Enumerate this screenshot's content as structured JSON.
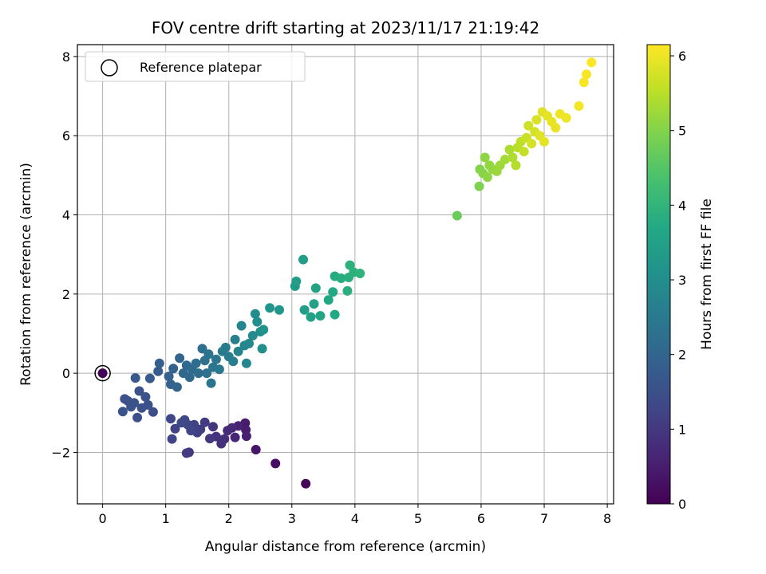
{
  "chart_data": {
    "type": "scatter",
    "title": "FOV centre drift starting at 2023/11/17 21:19:42",
    "xlabel": "Angular distance from reference (arcmin)",
    "ylabel": "Rotation from reference (arcmin)",
    "xlim": [
      -0.4,
      8.1
    ],
    "ylim": [
      -3.3,
      8.3
    ],
    "xticks": [
      0,
      1,
      2,
      3,
      4,
      5,
      6,
      7,
      8
    ],
    "yticks": [
      -2,
      0,
      2,
      4,
      6,
      8
    ],
    "grid": true,
    "legend": {
      "placement": "top-left",
      "entries": [
        "Reference platepar"
      ]
    },
    "reference_point": {
      "x": 0,
      "y": 0
    },
    "colorbar": {
      "label": "Hours from first FF file",
      "colormap": "viridis",
      "range": [
        0,
        6.15
      ],
      "ticks": [
        0,
        1,
        2,
        3,
        4,
        5,
        6
      ]
    },
    "series": [
      {
        "points": [
          {
            "x": 0.0,
            "y": 0.0,
            "c": 0.05
          },
          {
            "x": 3.22,
            "y": -2.79,
            "c": 0.1
          },
          {
            "x": 2.74,
            "y": -2.28,
            "c": 0.25
          },
          {
            "x": 2.43,
            "y": -1.93,
            "c": 0.35
          },
          {
            "x": 2.26,
            "y": -1.26,
            "c": 0.45
          },
          {
            "x": 2.27,
            "y": -1.43,
            "c": 0.5
          },
          {
            "x": 2.28,
            "y": -1.59,
            "c": 0.55
          },
          {
            "x": 2.15,
            "y": -1.33,
            "c": 0.6
          },
          {
            "x": 2.1,
            "y": -1.62,
            "c": 0.65
          },
          {
            "x": 2.05,
            "y": -1.38,
            "c": 0.7
          },
          {
            "x": 1.98,
            "y": -1.45,
            "c": 0.75
          },
          {
            "x": 1.93,
            "y": -1.66,
            "c": 0.8
          },
          {
            "x": 1.88,
            "y": -1.78,
            "c": 0.85
          },
          {
            "x": 1.8,
            "y": -1.6,
            "c": 0.9
          },
          {
            "x": 1.75,
            "y": -1.35,
            "c": 0.95
          },
          {
            "x": 1.7,
            "y": -1.65,
            "c": 1.0
          },
          {
            "x": 1.62,
            "y": -1.24,
            "c": 1.05
          },
          {
            "x": 1.55,
            "y": -1.42,
            "c": 1.1
          },
          {
            "x": 1.5,
            "y": -1.5,
            "c": 1.15
          },
          {
            "x": 1.45,
            "y": -1.3,
            "c": 1.2
          },
          {
            "x": 1.4,
            "y": -1.45,
            "c": 1.25
          },
          {
            "x": 1.35,
            "y": -1.3,
            "c": 1.3
          },
          {
            "x": 1.3,
            "y": -1.18,
            "c": 1.35
          },
          {
            "x": 1.25,
            "y": -1.25,
            "c": 1.4
          },
          {
            "x": 1.37,
            "y": -2.0,
            "c": 1.0
          },
          {
            "x": 1.33,
            "y": -2.02,
            "c": 1.05
          },
          {
            "x": 1.15,
            "y": -1.4,
            "c": 1.2
          },
          {
            "x": 1.1,
            "y": -1.66,
            "c": 1.25
          },
          {
            "x": 1.08,
            "y": -1.15,
            "c": 1.3
          },
          {
            "x": 0.8,
            "y": -0.98,
            "c": 1.45
          },
          {
            "x": 0.72,
            "y": -0.8,
            "c": 1.5
          },
          {
            "x": 0.68,
            "y": -0.6,
            "c": 1.55
          },
          {
            "x": 0.62,
            "y": -0.88,
            "c": 1.55
          },
          {
            "x": 0.58,
            "y": -0.45,
            "c": 1.6
          },
          {
            "x": 0.55,
            "y": -1.12,
            "c": 1.5
          },
          {
            "x": 0.5,
            "y": -0.75,
            "c": 1.6
          },
          {
            "x": 0.45,
            "y": -0.85,
            "c": 1.6
          },
          {
            "x": 0.4,
            "y": -0.7,
            "c": 1.55
          },
          {
            "x": 0.35,
            "y": -0.65,
            "c": 1.55
          },
          {
            "x": 0.32,
            "y": -0.97,
            "c": 1.6
          },
          {
            "x": 0.52,
            "y": -0.12,
            "c": 1.7
          },
          {
            "x": 0.75,
            "y": -0.13,
            "c": 1.75
          },
          {
            "x": 0.88,
            "y": 0.05,
            "c": 1.8
          },
          {
            "x": 0.9,
            "y": 0.25,
            "c": 1.85
          },
          {
            "x": 1.05,
            "y": -0.08,
            "c": 1.9
          },
          {
            "x": 1.08,
            "y": -0.28,
            "c": 1.9
          },
          {
            "x": 1.12,
            "y": 0.12,
            "c": 1.95
          },
          {
            "x": 1.18,
            "y": -0.35,
            "c": 2.0
          },
          {
            "x": 1.22,
            "y": 0.38,
            "c": 2.0
          },
          {
            "x": 1.28,
            "y": 0.0,
            "c": 2.05
          },
          {
            "x": 1.33,
            "y": 0.2,
            "c": 2.1
          },
          {
            "x": 1.38,
            "y": -0.1,
            "c": 2.1
          },
          {
            "x": 1.42,
            "y": 0.1,
            "c": 2.15
          },
          {
            "x": 1.48,
            "y": 0.25,
            "c": 2.2
          },
          {
            "x": 1.52,
            "y": 0.0,
            "c": 2.2
          },
          {
            "x": 1.58,
            "y": 0.62,
            "c": 2.25
          },
          {
            "x": 1.62,
            "y": 0.32,
            "c": 2.3
          },
          {
            "x": 1.65,
            "y": 0.0,
            "c": 2.3
          },
          {
            "x": 1.68,
            "y": 0.48,
            "c": 2.35
          },
          {
            "x": 1.72,
            "y": -0.25,
            "c": 2.35
          },
          {
            "x": 1.75,
            "y": 0.15,
            "c": 2.4
          },
          {
            "x": 1.8,
            "y": 0.35,
            "c": 2.4
          },
          {
            "x": 1.85,
            "y": 0.1,
            "c": 2.45
          },
          {
            "x": 1.9,
            "y": 0.55,
            "c": 2.5
          },
          {
            "x": 1.95,
            "y": 0.65,
            "c": 2.55
          },
          {
            "x": 2.0,
            "y": 0.42,
            "c": 2.55
          },
          {
            "x": 2.07,
            "y": 0.3,
            "c": 2.6
          },
          {
            "x": 2.1,
            "y": 0.85,
            "c": 2.65
          },
          {
            "x": 2.15,
            "y": 0.55,
            "c": 2.7
          },
          {
            "x": 2.2,
            "y": 1.2,
            "c": 2.75
          },
          {
            "x": 2.25,
            "y": 0.7,
            "c": 2.8
          },
          {
            "x": 2.28,
            "y": 0.25,
            "c": 2.8
          },
          {
            "x": 2.32,
            "y": 0.75,
            "c": 2.85
          },
          {
            "x": 2.38,
            "y": 0.95,
            "c": 2.9
          },
          {
            "x": 2.42,
            "y": 1.5,
            "c": 2.95
          },
          {
            "x": 2.45,
            "y": 1.3,
            "c": 3.0
          },
          {
            "x": 2.5,
            "y": 1.05,
            "c": 3.0
          },
          {
            "x": 2.53,
            "y": 0.62,
            "c": 3.05
          },
          {
            "x": 2.55,
            "y": 1.1,
            "c": 3.1
          },
          {
            "x": 2.65,
            "y": 1.65,
            "c": 3.15
          },
          {
            "x": 2.8,
            "y": 1.6,
            "c": 3.2
          },
          {
            "x": 3.05,
            "y": 2.2,
            "c": 3.35
          },
          {
            "x": 3.07,
            "y": 2.32,
            "c": 3.4
          },
          {
            "x": 3.18,
            "y": 2.87,
            "c": 3.4
          },
          {
            "x": 3.2,
            "y": 1.6,
            "c": 3.45
          },
          {
            "x": 3.3,
            "y": 1.42,
            "c": 3.5
          },
          {
            "x": 3.35,
            "y": 1.75,
            "c": 3.5
          },
          {
            "x": 3.38,
            "y": 2.15,
            "c": 3.55
          },
          {
            "x": 3.45,
            "y": 1.45,
            "c": 3.6
          },
          {
            "x": 3.58,
            "y": 1.85,
            "c": 3.65
          },
          {
            "x": 3.65,
            "y": 2.05,
            "c": 3.7
          },
          {
            "x": 3.68,
            "y": 1.48,
            "c": 3.7
          },
          {
            "x": 3.68,
            "y": 2.45,
            "c": 3.75
          },
          {
            "x": 3.78,
            "y": 2.4,
            "c": 3.8
          },
          {
            "x": 3.88,
            "y": 2.08,
            "c": 3.85
          },
          {
            "x": 3.9,
            "y": 2.42,
            "c": 3.85
          },
          {
            "x": 3.92,
            "y": 2.73,
            "c": 3.9
          },
          {
            "x": 3.98,
            "y": 2.55,
            "c": 3.9
          },
          {
            "x": 4.08,
            "y": 2.52,
            "c": 3.95
          },
          {
            "x": 5.62,
            "y": 3.98,
            "c": 4.75
          },
          {
            "x": 5.97,
            "y": 4.72,
            "c": 4.95
          },
          {
            "x": 5.98,
            "y": 5.15,
            "c": 5.0
          },
          {
            "x": 6.03,
            "y": 5.05,
            "c": 5.05
          },
          {
            "x": 6.06,
            "y": 5.45,
            "c": 5.1
          },
          {
            "x": 6.1,
            "y": 4.95,
            "c": 5.1
          },
          {
            "x": 6.13,
            "y": 5.25,
            "c": 5.15
          },
          {
            "x": 6.18,
            "y": 5.15,
            "c": 5.15
          },
          {
            "x": 6.25,
            "y": 5.1,
            "c": 5.2
          },
          {
            "x": 6.3,
            "y": 5.25,
            "c": 5.25
          },
          {
            "x": 6.38,
            "y": 5.4,
            "c": 5.3
          },
          {
            "x": 6.45,
            "y": 5.65,
            "c": 5.35
          },
          {
            "x": 6.5,
            "y": 5.45,
            "c": 5.4
          },
          {
            "x": 6.55,
            "y": 5.25,
            "c": 5.45
          },
          {
            "x": 6.58,
            "y": 5.7,
            "c": 5.5
          },
          {
            "x": 6.63,
            "y": 5.85,
            "c": 5.55
          },
          {
            "x": 6.68,
            "y": 5.6,
            "c": 5.6
          },
          {
            "x": 6.72,
            "y": 5.95,
            "c": 5.65
          },
          {
            "x": 6.75,
            "y": 6.25,
            "c": 5.7
          },
          {
            "x": 6.8,
            "y": 5.8,
            "c": 5.75
          },
          {
            "x": 6.85,
            "y": 6.1,
            "c": 5.75
          },
          {
            "x": 6.88,
            "y": 6.4,
            "c": 5.8
          },
          {
            "x": 6.93,
            "y": 6.0,
            "c": 5.85
          },
          {
            "x": 6.97,
            "y": 6.6,
            "c": 5.85
          },
          {
            "x": 7.0,
            "y": 5.85,
            "c": 5.9
          },
          {
            "x": 7.05,
            "y": 6.5,
            "c": 5.9
          },
          {
            "x": 7.12,
            "y": 6.35,
            "c": 5.95
          },
          {
            "x": 7.18,
            "y": 6.2,
            "c": 5.95
          },
          {
            "x": 7.25,
            "y": 6.55,
            "c": 6.0
          },
          {
            "x": 7.35,
            "y": 6.45,
            "c": 6.0
          },
          {
            "x": 7.55,
            "y": 6.75,
            "c": 6.05
          },
          {
            "x": 7.63,
            "y": 7.35,
            "c": 6.08
          },
          {
            "x": 7.67,
            "y": 7.55,
            "c": 6.1
          },
          {
            "x": 7.75,
            "y": 7.85,
            "c": 6.15
          }
        ]
      }
    ]
  }
}
